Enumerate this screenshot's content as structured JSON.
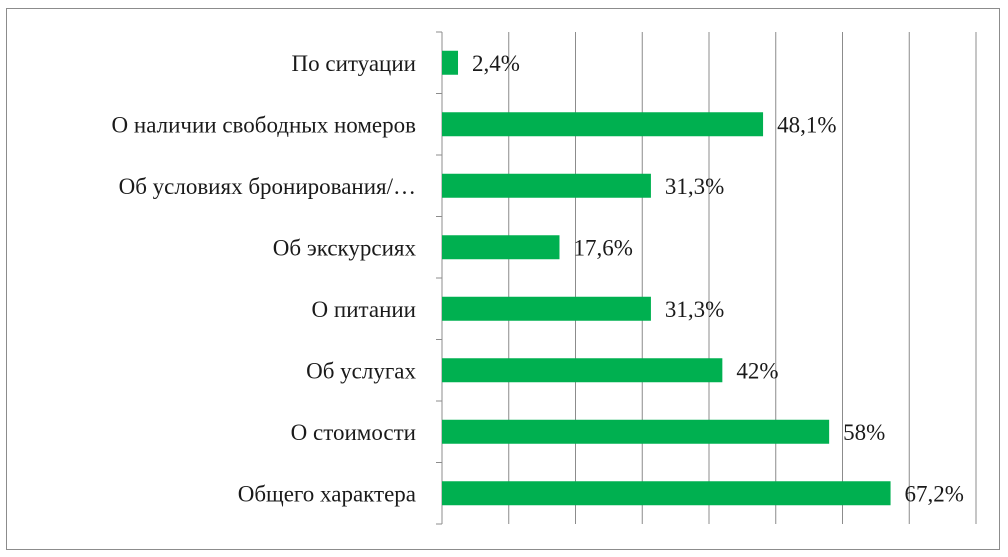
{
  "chart_data": {
    "type": "bar",
    "orientation": "horizontal",
    "categories": [
      "По ситуации",
      "О наличии свободных номеров",
      "Об условиях бронирования/…",
      "Об экскурсиях",
      "О питании",
      "Об услугах",
      "О стоимости",
      "Общего характера"
    ],
    "values": [
      2.4,
      48.1,
      31.3,
      17.6,
      31.3,
      42,
      58,
      67.2
    ],
    "value_labels": [
      "2,4%",
      "48,1%",
      "31,3%",
      "17,6%",
      "31,3%",
      "42%",
      "58%",
      "67,2%"
    ],
    "xlim": [
      0,
      80
    ],
    "grid": true,
    "bar_color": "#00b050",
    "legend": false
  }
}
